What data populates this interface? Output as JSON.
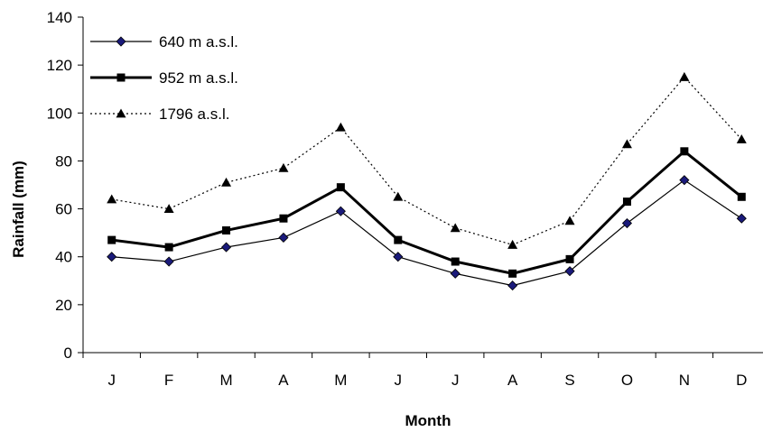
{
  "chart_data": {
    "type": "line",
    "title": "",
    "xlabel": "Month",
    "ylabel": "Rainfall (mm)",
    "ylim": [
      0,
      140
    ],
    "yticks": [
      0,
      20,
      40,
      60,
      80,
      100,
      120,
      140
    ],
    "grid": false,
    "legend_position": "top-left",
    "categories": [
      "J",
      "F",
      "M",
      "A",
      "M",
      "J",
      "J",
      "A",
      "S",
      "O",
      "N",
      "D"
    ],
    "series": [
      {
        "name": "640 m a.s.l.",
        "marker": "diamond",
        "line_style": "solid-thin",
        "marker_color": "#1a1a7a",
        "values": [
          40,
          38,
          44,
          48,
          59,
          40,
          33,
          28,
          34,
          54,
          72,
          56
        ]
      },
      {
        "name": "952 m a.s.l.",
        "marker": "square",
        "line_style": "solid-thick",
        "marker_color": "#000000",
        "values": [
          47,
          44,
          51,
          56,
          69,
          47,
          38,
          33,
          39,
          63,
          84,
          65
        ]
      },
      {
        "name": "1796 a.s.l.",
        "marker": "triangle",
        "line_style": "dotted",
        "marker_color": "#000000",
        "values": [
          64,
          60,
          71,
          77,
          94,
          65,
          52,
          45,
          55,
          87,
          115,
          89
        ]
      }
    ]
  }
}
